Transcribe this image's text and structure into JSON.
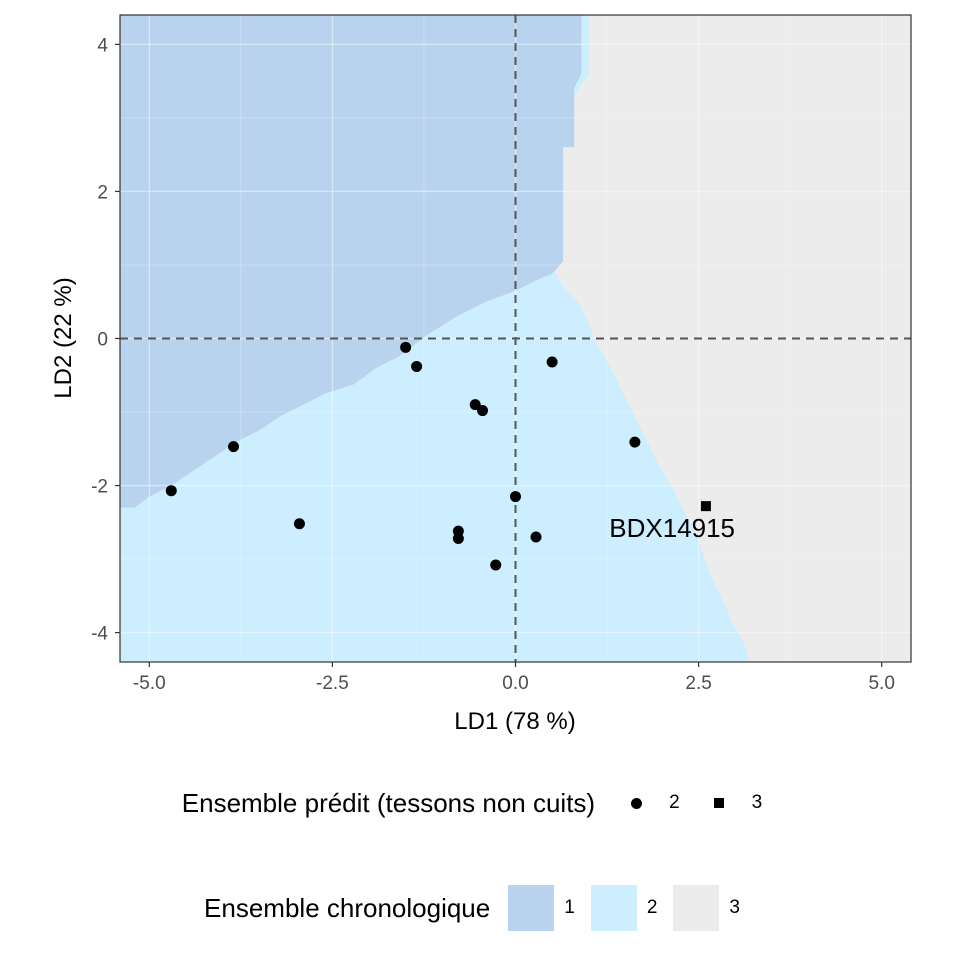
{
  "chart_data": {
    "type": "scatter",
    "xlabel": "LD1 (78 %)",
    "ylabel": "LD2 (22 %)",
    "xlim": [
      -5.4,
      5.4
    ],
    "ylim": [
      -4.4,
      4.4
    ],
    "x_ticks": [
      "-5.0",
      "-2.5",
      "0.0",
      "2.5",
      "5.0"
    ],
    "y_ticks": [
      "-4",
      "-2",
      "0",
      "2",
      "4"
    ],
    "reference_lines": {
      "x": 0,
      "y": 0,
      "style": "dashed"
    },
    "grid": true,
    "regions": [
      {
        "name": "1",
        "color": "#b9d3ee"
      },
      {
        "name": "2",
        "color": "#cceeff"
      },
      {
        "name": "3",
        "color": "#ececec"
      }
    ],
    "region_boundaries": {
      "boundary_1_2": [
        [
          -5.2,
          -2.3
        ],
        [
          -5.0,
          -2.15
        ],
        [
          -4.7,
          -2.0
        ],
        [
          -4.4,
          -1.8
        ],
        [
          -4.1,
          -1.6
        ],
        [
          -3.8,
          -1.4
        ],
        [
          -3.5,
          -1.25
        ],
        [
          -3.2,
          -1.05
        ],
        [
          -2.9,
          -0.9
        ],
        [
          -2.6,
          -0.75
        ],
        [
          -2.2,
          -0.62
        ],
        [
          -1.9,
          -0.4
        ],
        [
          -1.6,
          -0.25
        ],
        [
          -1.2,
          0.05
        ],
        [
          -0.8,
          0.3
        ],
        [
          -0.4,
          0.5
        ],
        [
          0.0,
          0.65
        ],
        [
          0.3,
          0.8
        ],
        [
          0.5,
          0.88
        ],
        [
          0.65,
          1.05
        ],
        [
          0.65,
          2.6
        ],
        [
          0.8,
          2.6
        ],
        [
          0.8,
          3.4
        ],
        [
          0.9,
          3.6
        ],
        [
          0.9,
          4.4
        ]
      ],
      "boundary_2_3": [
        [
          0.9,
          4.4
        ],
        [
          1.0,
          4.4
        ],
        [
          1.0,
          3.6
        ],
        [
          0.8,
          3.3
        ],
        [
          0.8,
          2.6
        ],
        [
          0.65,
          2.6
        ],
        [
          0.65,
          1.3
        ],
        [
          0.55,
          0.9
        ],
        [
          0.65,
          0.7
        ],
        [
          0.85,
          0.5
        ],
        [
          1.0,
          0.2
        ],
        [
          1.1,
          -0.05
        ],
        [
          1.25,
          -0.3
        ],
        [
          1.4,
          -0.6
        ],
        [
          1.55,
          -0.9
        ],
        [
          1.75,
          -1.3
        ],
        [
          1.95,
          -1.7
        ],
        [
          2.15,
          -2.05
        ],
        [
          2.3,
          -2.35
        ],
        [
          2.5,
          -2.75
        ],
        [
          2.6,
          -3.05
        ],
        [
          2.7,
          -3.3
        ],
        [
          2.85,
          -3.6
        ],
        [
          2.95,
          -3.85
        ],
        [
          3.1,
          -4.1
        ],
        [
          3.2,
          -4.4
        ]
      ]
    },
    "series": [
      {
        "name": "2",
        "shape": "circle",
        "points": [
          [
            -4.7,
            -2.07
          ],
          [
            -3.85,
            -1.47
          ],
          [
            -2.95,
            -2.52
          ],
          [
            -1.5,
            -0.12
          ],
          [
            -1.35,
            -0.38
          ],
          [
            -0.55,
            -0.9
          ],
          [
            -0.45,
            -0.98
          ],
          [
            -0.78,
            -2.62
          ],
          [
            -0.78,
            -2.72
          ],
          [
            -0.27,
            -3.08
          ],
          [
            0.0,
            -2.15
          ],
          [
            0.28,
            -2.7
          ],
          [
            0.5,
            -0.32
          ],
          [
            1.63,
            -1.41
          ]
        ]
      },
      {
        "name": "3",
        "shape": "square",
        "points": [
          [
            2.6,
            -2.28
          ]
        ]
      }
    ],
    "annotations": [
      {
        "text": "BDX14915",
        "x": 1.28,
        "y": -2.58
      }
    ]
  },
  "legend_shape": {
    "title": "Ensemble prédit (tessons non cuits)",
    "items": [
      "2",
      "3"
    ]
  },
  "legend_fill": {
    "title": "Ensemble chronologique",
    "items": [
      "1",
      "2",
      "3"
    ],
    "colors": [
      "#b9d3ee",
      "#cceeff",
      "#ececec"
    ]
  }
}
